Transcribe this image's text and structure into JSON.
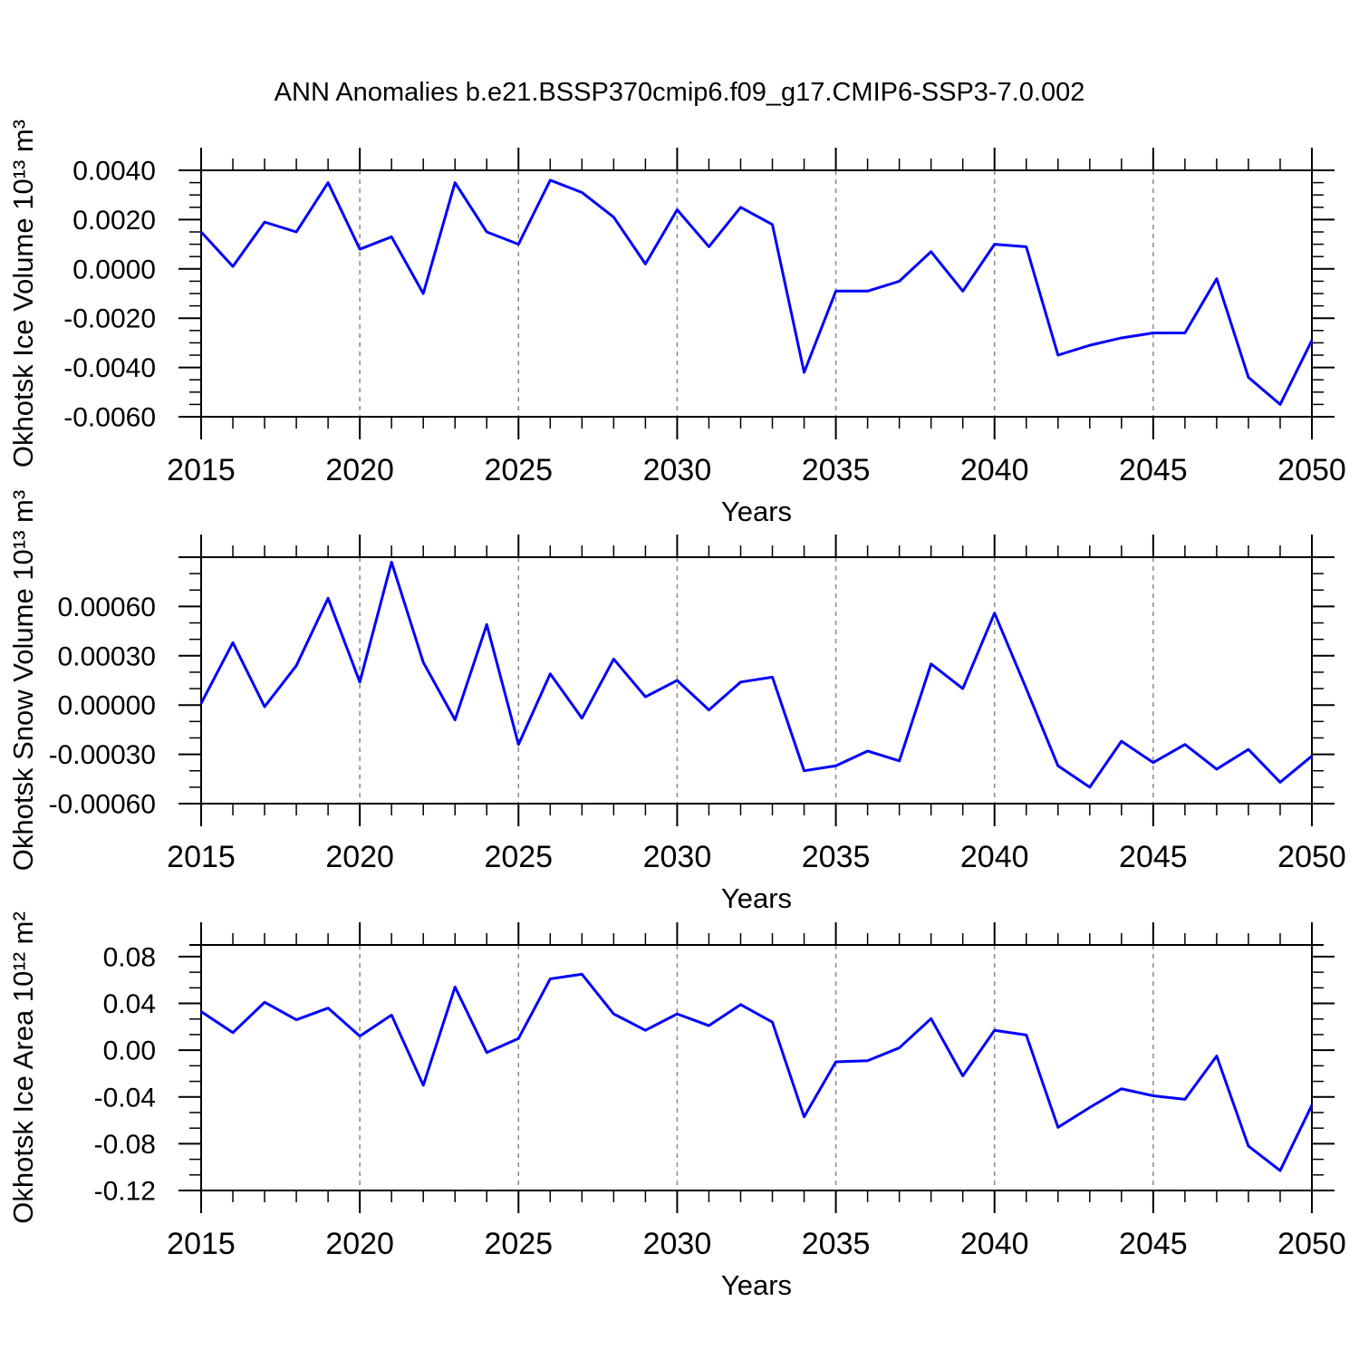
{
  "title": "ANN Anomalies b.e21.BSSP370cmip6.f09_g17.CMIP6-SSP3-7.0.002",
  "colors": {
    "line": "#0000ff",
    "frame": "#000000",
    "grid": "#888888",
    "background": "#ffffff",
    "text": "#000000"
  },
  "x_axis": {
    "label": "Years",
    "years": [
      2015,
      2016,
      2017,
      2018,
      2019,
      2020,
      2021,
      2022,
      2023,
      2024,
      2025,
      2026,
      2027,
      2028,
      2029,
      2030,
      2031,
      2032,
      2033,
      2034,
      2035,
      2036,
      2037,
      2038,
      2039,
      2040,
      2041,
      2042,
      2043,
      2044,
      2045,
      2046,
      2047,
      2048,
      2049,
      2050
    ],
    "major_tick_years": [
      2015,
      2020,
      2025,
      2030,
      2035,
      2040,
      2045,
      2050
    ],
    "grid_years": [
      2020,
      2025,
      2030,
      2035,
      2040,
      2045
    ]
  },
  "chart_data": [
    {
      "type": "line",
      "ylabel": "Okhotsk Ice Volume 10¹³ m³",
      "xlabel": "Years",
      "ylim": [
        -0.006,
        0.004
      ],
      "top_is_major": true,
      "minor_step": 0.0005,
      "minor_per_major": 4,
      "yticks": [
        {
          "v": 0.004,
          "label": "0.0040"
        },
        {
          "v": 0.002,
          "label": "0.0020"
        },
        {
          "v": 0.0,
          "label": "0.0000"
        },
        {
          "v": -0.002,
          "label": "-0.0020"
        },
        {
          "v": -0.004,
          "label": "-0.0040"
        },
        {
          "v": -0.006,
          "label": "-0.0060"
        }
      ],
      "values": [
        0.0015,
        0.0001,
        0.0019,
        0.0015,
        0.0035,
        0.0008,
        0.0013,
        -0.001,
        0.0035,
        0.0015,
        0.001,
        0.0036,
        0.0031,
        0.0021,
        0.0002,
        0.0024,
        0.0009,
        0.0025,
        0.0018,
        -0.0042,
        -0.0009,
        -0.0009,
        -0.0005,
        0.0007,
        -0.0009,
        0.001,
        0.0009,
        -0.0035,
        -0.0031,
        -0.0028,
        -0.0026,
        -0.0026,
        -0.0004,
        -0.0044,
        -0.0055,
        -0.0029
      ]
    },
    {
      "type": "line",
      "ylabel": "Okhotsk Snow Volume 10¹³ m³",
      "xlabel": "Years",
      "ylim": [
        -0.0006,
        0.0009
      ],
      "top_is_major": true,
      "minor_step": 0.0001,
      "minor_per_major": 3,
      "yticks": [
        {
          "v": 0.0006,
          "label": "0.00060"
        },
        {
          "v": 0.0003,
          "label": "0.00030"
        },
        {
          "v": 0.0,
          "label": "0.00000"
        },
        {
          "v": -0.0003,
          "label": "-0.00030"
        },
        {
          "v": -0.0006,
          "label": "-0.00060"
        }
      ],
      "values": [
        1e-05,
        0.00038,
        -1e-05,
        0.00024,
        0.00065,
        0.00014,
        0.00087,
        0.00026,
        -9e-05,
        0.00049,
        -0.00024,
        0.00019,
        -8e-05,
        0.00028,
        5e-05,
        0.00015,
        -3e-05,
        0.00014,
        0.00017,
        -0.0004,
        -0.00037,
        -0.00028,
        -0.00034,
        0.00025,
        0.0001,
        0.00056,
        0.0001,
        -0.00037,
        -0.0005,
        -0.00022,
        -0.00035,
        -0.00024,
        -0.00039,
        -0.00027,
        -0.00047,
        -0.00031
      ]
    },
    {
      "type": "line",
      "ylabel": "Okhotsk Ice Area 10¹² m²",
      "xlabel": "Years",
      "ylim": [
        -0.12,
        0.09
      ],
      "top_is_major": false,
      "minor_step": 0.0133333333,
      "minor_per_major": 3,
      "yticks": [
        {
          "v": 0.08,
          "label": "0.08"
        },
        {
          "v": 0.04,
          "label": "0.04"
        },
        {
          "v": 0.0,
          "label": "0.00"
        },
        {
          "v": -0.04,
          "label": "-0.04"
        },
        {
          "v": -0.08,
          "label": "-0.08"
        },
        {
          "v": -0.12,
          "label": "-0.12"
        }
      ],
      "values": [
        0.033,
        0.015,
        0.041,
        0.026,
        0.036,
        0.012,
        0.03,
        -0.03,
        0.054,
        -0.002,
        0.01,
        0.061,
        0.065,
        0.031,
        0.017,
        0.031,
        0.021,
        0.039,
        0.024,
        -0.057,
        -0.01,
        -0.009,
        0.002,
        0.027,
        -0.022,
        0.017,
        0.013,
        -0.066,
        -0.049,
        -0.033,
        -0.039,
        -0.042,
        -0.005,
        -0.082,
        -0.103,
        -0.047
      ]
    }
  ]
}
